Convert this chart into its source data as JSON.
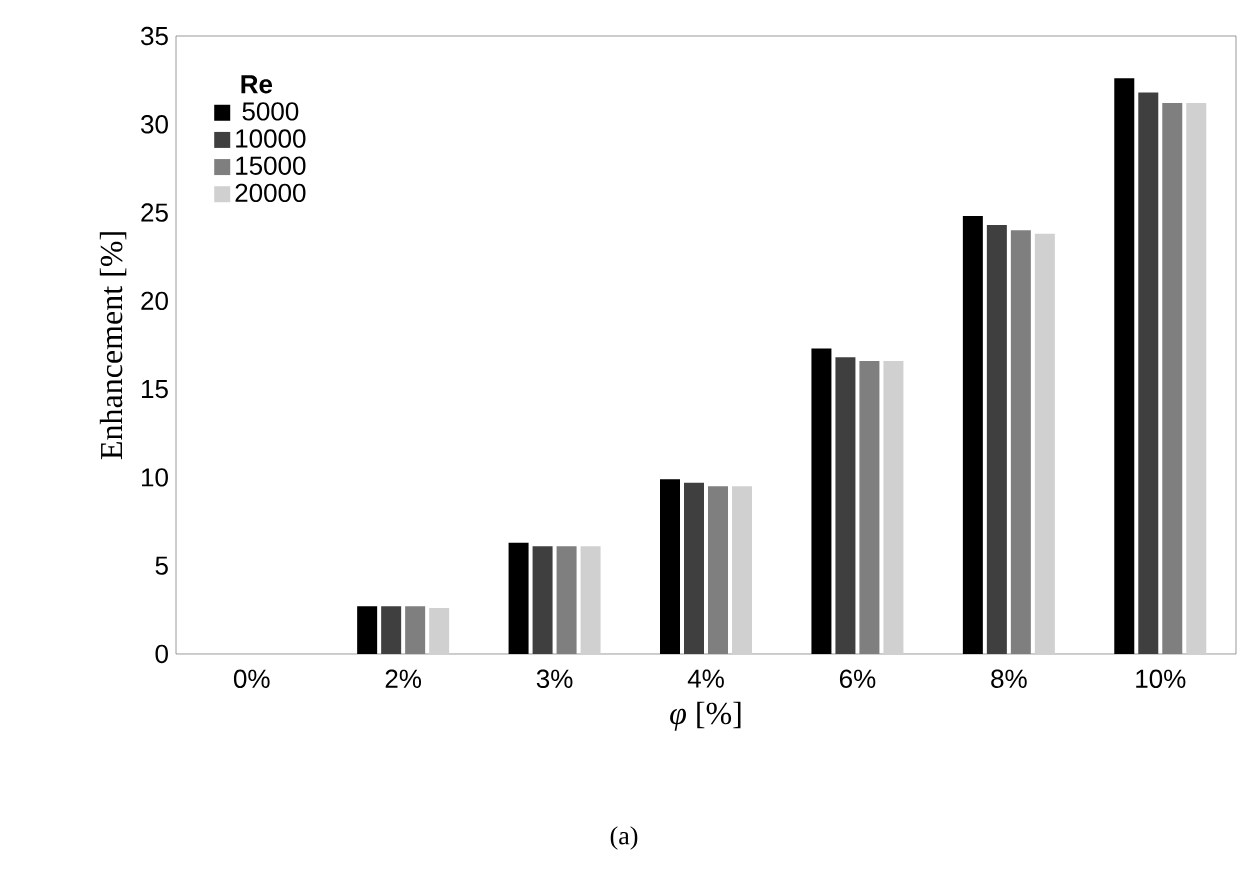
{
  "chart_data": {
    "type": "bar",
    "xlabel": "*φ* [%]",
    "ylabel": "Enhancement [%]",
    "legend_title": "Re",
    "legend": "top left",
    "annotations": [
      "(a)"
    ],
    "categories": [
      "0%",
      "2%",
      "3%",
      "4%",
      "6%",
      "8%",
      "10%"
    ],
    "ylim": [
      0,
      35
    ],
    "yticks": [
      0,
      5,
      10,
      15,
      20,
      25,
      30,
      35
    ],
    "grid": false,
    "series": [
      {
        "name": "5000",
        "color": "#000000",
        "values": [
          0,
          2.7,
          6.3,
          9.9,
          17.3,
          24.8,
          32.6
        ]
      },
      {
        "name": "10000",
        "color": "#3f3f3f",
        "values": [
          0,
          2.7,
          6.1,
          9.7,
          16.8,
          24.3,
          31.8
        ]
      },
      {
        "name": "15000",
        "color": "#7f7f7f",
        "values": [
          0,
          2.7,
          6.1,
          9.5,
          16.6,
          24.0,
          31.2
        ]
      },
      {
        "name": "20000",
        "color": "#d0d0d0",
        "values": [
          0,
          2.6,
          6.1,
          9.5,
          16.6,
          23.8,
          31.2
        ]
      }
    ]
  }
}
